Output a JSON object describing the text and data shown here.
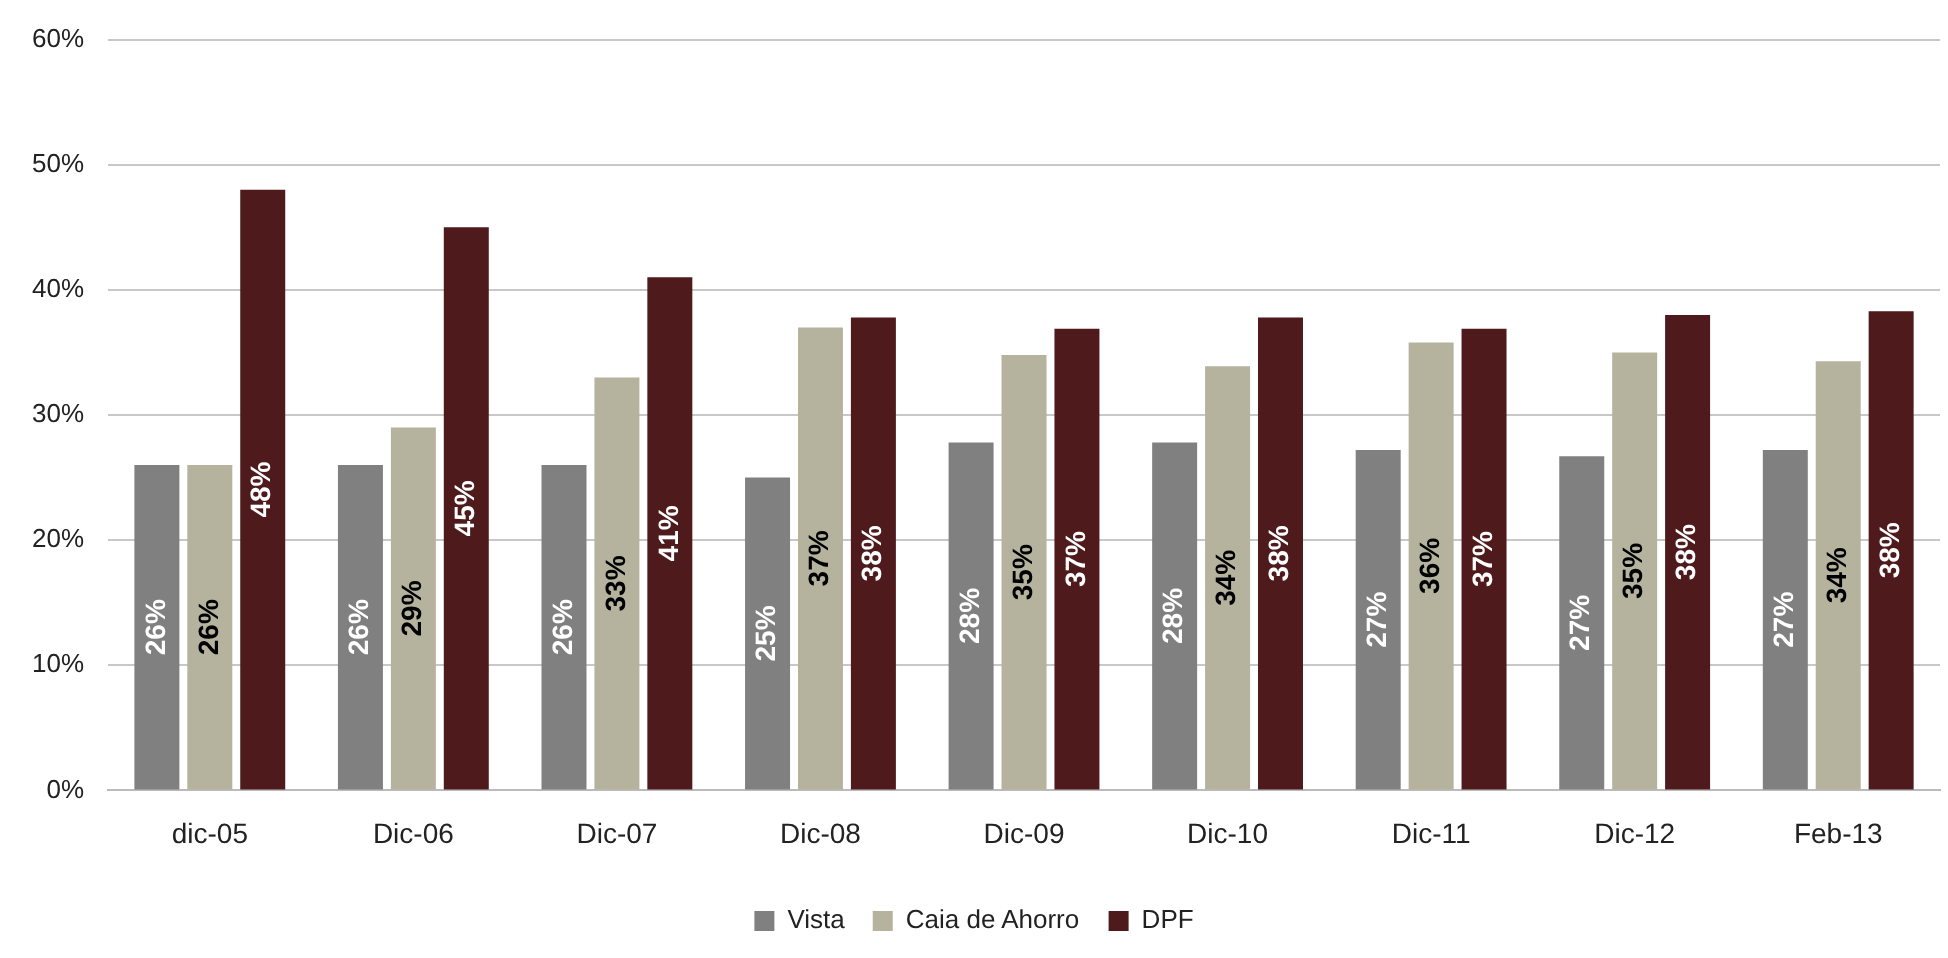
{
  "chart_data": {
    "type": "bar",
    "categories": [
      "dic-05",
      "Dic-06",
      "Dic-07",
      "Dic-08",
      "Dic-09",
      "Dic-10",
      "Dic-11",
      "Dic-12",
      "Feb-13"
    ],
    "series": [
      {
        "name": "Vista",
        "color": "#808080",
        "values": [
          26,
          26,
          26,
          25,
          27.8,
          27.8,
          27.2,
          26.7,
          27.2
        ],
        "value_labels": [
          "26%",
          "26%",
          "26%",
          "25%",
          "28%",
          "28%",
          "27%",
          "27%",
          "27%"
        ]
      },
      {
        "name": "Caia de Ahorro",
        "color": "#b5b39e",
        "values": [
          26,
          29,
          33,
          37,
          34.8,
          33.9,
          35.8,
          35,
          34.3
        ],
        "value_labels": [
          "26%",
          "29%",
          "33%",
          "37%",
          "35%",
          "34%",
          "36%",
          "35%",
          "34%"
        ]
      },
      {
        "name": "DPF",
        "color": "#4f1a1c",
        "values": [
          48,
          45,
          41,
          37.8,
          36.9,
          37.8,
          36.9,
          38,
          38.3
        ],
        "value_labels": [
          "48%",
          "45%",
          "41%",
          "38%",
          "37%",
          "38%",
          "37%",
          "38%",
          "38%"
        ]
      }
    ],
    "ylim": [
      0,
      60
    ],
    "yticks": [
      {
        "value": 0,
        "label": "0%"
      },
      {
        "value": 10,
        "label": "10%"
      },
      {
        "value": 20,
        "label": "20%"
      },
      {
        "value": 30,
        "label": "30%"
      },
      {
        "value": 40,
        "label": "40%"
      },
      {
        "value": 50,
        "label": "50%"
      },
      {
        "value": 60,
        "label": "60%"
      }
    ],
    "grid": "y",
    "legend": "bottom"
  }
}
